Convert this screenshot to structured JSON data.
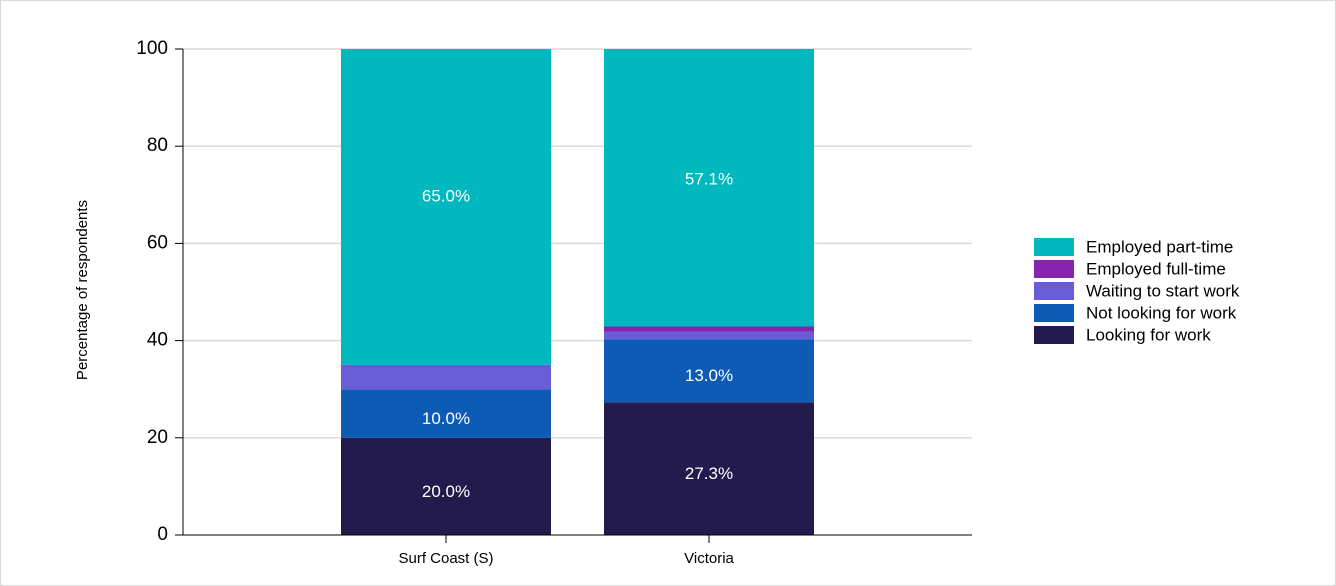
{
  "chart_data": {
    "type": "bar",
    "stacked": true,
    "title": "",
    "xlabel": "",
    "ylabel": "Percentage of respondents",
    "ylim": [
      0,
      100
    ],
    "yticks": [
      0,
      20,
      40,
      60,
      80,
      100
    ],
    "grid": true,
    "legend_position": "right",
    "categories": [
      "Surf Coast (S)",
      "Victoria"
    ],
    "series": [
      {
        "name": "Looking for work",
        "color": "#231b4d",
        "values": [
          20.0,
          27.3
        ],
        "labels": [
          "20.0%",
          "27.3%"
        ]
      },
      {
        "name": "Not looking for work",
        "color": "#0d5bb5",
        "values": [
          10.0,
          13.0
        ],
        "labels": [
          "10.0%",
          "13.0%"
        ]
      },
      {
        "name": "Waiting to start work",
        "color": "#6a5bd6",
        "values": [
          5.0,
          1.5
        ],
        "labels": [
          "",
          ""
        ]
      },
      {
        "name": "Employed full-time",
        "color": "#8a22b0",
        "values": [
          0.0,
          1.1
        ],
        "labels": [
          "",
          ""
        ]
      },
      {
        "name": "Employed part-time",
        "color": "#00b8bd",
        "values": [
          65.0,
          57.1
        ],
        "labels": [
          "65.0%",
          "57.1%"
        ]
      }
    ],
    "legend_order": [
      "Employed part-time",
      "Employed full-time",
      "Waiting to start work",
      "Not looking for work",
      "Looking for work"
    ]
  }
}
